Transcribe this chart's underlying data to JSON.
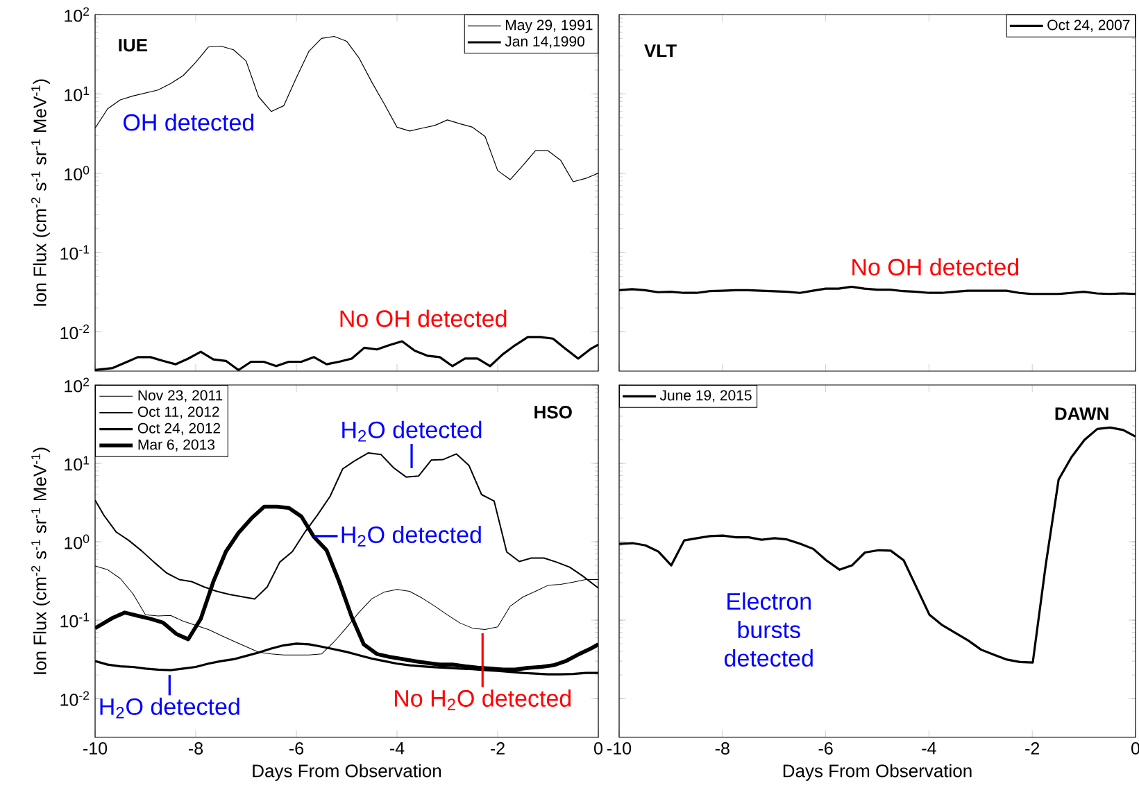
{
  "chart_data": [
    {
      "type": "line",
      "title": "IUE",
      "ylabel": "Ion Flux (cm$^{-2}$ s$^{-1}$ sr$^{-1}$ MeV$^{-1}$)",
      "log": true,
      "legend": "top right",
      "tick_labels": "y",
      "xlim": [
        -10,
        0
      ],
      "xticks": [
        -10,
        -8,
        -6,
        -4,
        -2,
        0
      ],
      "ylim": [
        0.0032,
        100
      ],
      "yticks": [
        {
          "value": 0.01,
          "label": "10$^{-2}$"
        },
        {
          "value": 0.1,
          "label": "10$^{-1}$"
        },
        {
          "value": 1,
          "label": "10$^{0}$"
        },
        {
          "value": 10,
          "label": "10$^{1}$"
        },
        {
          "value": 100,
          "label": "10$^{2}$"
        }
      ],
      "series": [
        {
          "name": "May 29, 1991",
          "color": "#000000",
          "x": [
            -10,
            -9.75,
            -9.5,
            -9.25,
            -8.75,
            -8.5,
            -8.25,
            -8,
            -7.75,
            -7.5,
            -7.25,
            -7,
            -6.75,
            -6.5,
            -6.25,
            -6,
            -5.75,
            -5.5,
            -5.25,
            -5,
            -4.75,
            -4.5,
            -4.25,
            -4,
            -3.75,
            -3.5,
            -3.25,
            -3,
            -2.75,
            -2.5,
            -2.25,
            -2,
            -1.75,
            -1.5,
            -1.25,
            -1,
            -0.75,
            -0.5,
            -0.25,
            0
          ],
          "values": [
            3.7,
            6.5,
            8.4,
            9.4,
            11.2,
            13.5,
            17,
            25,
            39,
            40,
            36,
            26,
            9.2,
            6.0,
            7.1,
            16,
            34.5,
            50,
            53,
            46,
            28,
            14,
            7.4,
            3.8,
            3.4,
            3.7,
            4.0,
            4.7,
            4.2,
            3.8,
            2.9,
            1.08,
            0.83,
            1.25,
            1.92,
            1.92,
            1.46,
            0.78,
            0.86,
            1.0
          ]
        },
        {
          "name": "Jan 14,1990",
          "color": "#000000",
          "x": [
            -10,
            -9.65,
            -9.4,
            -9.15,
            -8.9,
            -8.65,
            -8.4,
            -8.15,
            -7.9,
            -7.65,
            -7.4,
            -7.15,
            -6.9,
            -6.65,
            -6.4,
            -6.15,
            -5.9,
            -5.65,
            -5.4,
            -5.15,
            -4.9,
            -4.65,
            -4.4,
            -4.15,
            -3.9,
            -3.65,
            -3.4,
            -3.15,
            -2.9,
            -2.65,
            -2.4,
            -2.15,
            -1.9,
            -1.65,
            -1.4,
            -1.15,
            -0.9,
            -0.65,
            -0.4,
            -0.15,
            0
          ],
          "values": [
            0.0033,
            0.0035,
            0.0041,
            0.0048,
            0.0048,
            0.0043,
            0.0039,
            0.0046,
            0.0056,
            0.0045,
            0.0043,
            0.0033,
            0.0042,
            0.0042,
            0.0037,
            0.0042,
            0.0042,
            0.0048,
            0.0039,
            0.0042,
            0.0046,
            0.0063,
            0.006,
            0.0068,
            0.0076,
            0.0058,
            0.005,
            0.0048,
            0.0037,
            0.0046,
            0.0046,
            0.0037,
            0.0052,
            0.0068,
            0.0086,
            0.0086,
            0.0082,
            0.0061,
            0.0046,
            0.0061,
            0.0069
          ]
        }
      ],
      "annotations": [
        "OH detected",
        "No OH detected"
      ]
    },
    {
      "type": "line",
      "title": "VLT",
      "log": true,
      "legend": "top right",
      "tick_labels": false,
      "xlim": [
        -10,
        0
      ],
      "xticks": [
        -10,
        -8,
        -6,
        -4,
        -2,
        0
      ],
      "ylim": [
        0.0032,
        100
      ],
      "yticks": [
        {
          "value": 0.01,
          "label": null
        },
        {
          "value": 0.1,
          "label": null
        },
        {
          "value": 1,
          "label": null
        },
        {
          "value": 10,
          "label": null
        },
        {
          "value": 100,
          "label": null
        }
      ],
      "series": [
        {
          "name": "Oct 24, 2007",
          "color": "#000000",
          "x": [
            -10,
            -9.75,
            -9.5,
            -9.25,
            -9,
            -8.75,
            -8.5,
            -8.25,
            -8,
            -7.75,
            -7.5,
            -7.25,
            -7,
            -6.75,
            -6.5,
            -6.25,
            -6,
            -5.75,
            -5.5,
            -5.25,
            -5,
            -4.75,
            -4.5,
            -4.25,
            -4,
            -3.75,
            -3.5,
            -3.25,
            -3,
            -2.75,
            -2.5,
            -2.25,
            -2,
            -1.75,
            -1.5,
            -1.25,
            -1,
            -0.75,
            -0.5,
            -0.25,
            0
          ],
          "values": [
            0.0335,
            0.0345,
            0.0335,
            0.0316,
            0.032,
            0.031,
            0.031,
            0.0326,
            0.033,
            0.0335,
            0.0335,
            0.033,
            0.0325,
            0.032,
            0.031,
            0.033,
            0.035,
            0.035,
            0.037,
            0.035,
            0.034,
            0.034,
            0.0326,
            0.032,
            0.031,
            0.031,
            0.032,
            0.033,
            0.033,
            0.033,
            0.033,
            0.031,
            0.03,
            0.03,
            0.03,
            0.031,
            0.032,
            0.0305,
            0.03,
            0.0305,
            0.03
          ]
        }
      ],
      "annotations": [
        "No OH detected"
      ]
    },
    {
      "type": "line",
      "title": "HSO",
      "xlabel": "Days From Observation",
      "ylabel": "Ion Flux (cm$^{-2}$ s$^{-1}$ sr$^{-1}$ MeV$^{-1}$)",
      "log": true,
      "legend": "top left",
      "xlim": [
        -10,
        0
      ],
      "xticks": [
        -10,
        -8,
        -6,
        -4,
        -2,
        0
      ],
      "ylim": [
        0.0032,
        100
      ],
      "yticks": [
        {
          "value": 0.01,
          "label": "10$^{-2}$"
        },
        {
          "value": 0.1,
          "label": "10$^{-1}$"
        },
        {
          "value": 1,
          "label": "10$^{0}$"
        },
        {
          "value": 10,
          "label": "10$^{1}$"
        },
        {
          "value": 100,
          "label": "10$^{2}$"
        }
      ],
      "series": [
        {
          "name": "Nov 23, 2011",
          "color": "#000000",
          "x": [
            -10,
            -9.75,
            -9.5,
            -9.25,
            -9,
            -8.75,
            -8.5,
            -8.25,
            -8,
            -7.75,
            -7.5,
            -7.25,
            -7,
            -6.75,
            -6.5,
            -6.25,
            -6,
            -5.75,
            -5.5,
            -5.25,
            -5,
            -4.75,
            -4.5,
            -4.25,
            -4,
            -3.75,
            -3.5,
            -3.25,
            -3,
            -2.75,
            -2.5,
            -2.25,
            -2,
            -1.75,
            -1.5,
            -1.25,
            -1,
            -0.75,
            -0.5,
            -0.25,
            0
          ],
          "values": [
            0.49,
            0.44,
            0.34,
            0.218,
            0.117,
            0.113,
            0.115,
            0.097,
            0.086,
            0.076,
            0.064,
            0.054,
            0.046,
            0.039,
            0.037,
            0.036,
            0.036,
            0.036,
            0.037,
            0.053,
            0.081,
            0.127,
            0.188,
            0.229,
            0.247,
            0.233,
            0.191,
            0.151,
            0.117,
            0.092,
            0.079,
            0.076,
            0.082,
            0.151,
            0.197,
            0.233,
            0.278,
            0.286,
            0.306,
            0.33,
            0.33
          ]
        },
        {
          "name": "Oct 11, 2012",
          "color": "#000000",
          "x": [
            -10,
            -9.83,
            -9.58,
            -9.33,
            -9.08,
            -8.83,
            -8.58,
            -8.33,
            -8.08,
            -7.83,
            -7.58,
            -7.33,
            -7.08,
            -6.83,
            -6.58,
            -6.33,
            -6.08,
            -5.83,
            -5.58,
            -5.33,
            -5.08,
            -4.83,
            -4.57,
            -4.32,
            -4.07,
            -3.82,
            -3.57,
            -3.32,
            -3.08,
            -2.82,
            -2.57,
            -2.32,
            -2.07,
            -1.82,
            -1.57,
            -1.33,
            -1.08,
            -0.83,
            -0.57,
            -0.32,
            0
          ],
          "values": [
            3.4,
            2.2,
            1.33,
            1.04,
            0.77,
            0.55,
            0.4,
            0.33,
            0.31,
            0.265,
            0.233,
            0.213,
            0.199,
            0.186,
            0.265,
            0.55,
            0.75,
            1.33,
            2.2,
            3.8,
            8.5,
            10.9,
            13.6,
            13,
            8.8,
            6.7,
            6.9,
            11,
            11.2,
            13.2,
            9.4,
            4.0,
            3.3,
            0.74,
            0.56,
            0.62,
            0.62,
            0.55,
            0.475,
            0.37,
            0.257
          ]
        },
        {
          "name": "Oct 24, 2012",
          "color": "#000000",
          "x": [
            -10,
            -9.75,
            -9.5,
            -9.25,
            -9,
            -8.75,
            -8.5,
            -8.25,
            -8,
            -7.75,
            -7.5,
            -7.25,
            -7,
            -6.75,
            -6.5,
            -6.25,
            -6,
            -5.75,
            -5.5,
            -5.25,
            -5,
            -4.75,
            -4.5,
            -4.25,
            -4,
            -3.75,
            -3.5,
            -3.25,
            -3,
            -2.75,
            -2.5,
            -2.25,
            -2,
            -1.75,
            -1.5,
            -1.25,
            -1,
            -0.75,
            -0.5,
            -0.25,
            0
          ],
          "values": [
            0.03,
            0.0271,
            0.0258,
            0.0253,
            0.0241,
            0.0234,
            0.023,
            0.0241,
            0.0253,
            0.0279,
            0.03,
            0.0317,
            0.035,
            0.0386,
            0.0434,
            0.0478,
            0.0502,
            0.0492,
            0.0459,
            0.0425,
            0.0393,
            0.0356,
            0.0323,
            0.03,
            0.0279,
            0.0266,
            0.0258,
            0.0251,
            0.0246,
            0.0241,
            0.0237,
            0.023,
            0.0225,
            0.0219,
            0.0212,
            0.0208,
            0.0204,
            0.0204,
            0.0206,
            0.0212,
            0.0212
          ]
        },
        {
          "name": "Mar 6, 2013",
          "color": "#000000",
          "x": [
            -10,
            -9.65,
            -9.41,
            -9.14,
            -8.9,
            -8.65,
            -8.39,
            -8.15,
            -7.9,
            -7.65,
            -7.4,
            -7.15,
            -6.89,
            -6.64,
            -6.39,
            -6.15,
            -5.9,
            -5.65,
            -5.4,
            -5.15,
            -4.9,
            -4.66,
            -4.4,
            -4.15,
            -3.9,
            -3.64,
            -3.4,
            -3.15,
            -2.9,
            -2.65,
            -2.4,
            -2.15,
            -1.89,
            -1.65,
            -1.4,
            -1.14,
            -0.89,
            -0.65,
            -0.38,
            -0.15,
            0
          ],
          "values": [
            0.079,
            0.107,
            0.125,
            0.113,
            0.104,
            0.093,
            0.067,
            0.057,
            0.104,
            0.31,
            0.75,
            1.3,
            2.0,
            2.8,
            2.8,
            2.7,
            2.1,
            1.15,
            0.78,
            0.31,
            0.11,
            0.049,
            0.037,
            0.034,
            0.032,
            0.03,
            0.0284,
            0.0271,
            0.0271,
            0.0258,
            0.0248,
            0.0241,
            0.0234,
            0.0234,
            0.0246,
            0.0253,
            0.0266,
            0.03,
            0.037,
            0.0434,
            0.049
          ]
        }
      ],
      "annotations": [
        "H$_{2}$O detected",
        "H$_{2}$O detected",
        "H$_{2}$O detected",
        "No H$_{2}$O detected"
      ]
    },
    {
      "type": "line",
      "title": "DAWN",
      "xlabel": "Days From Observation",
      "log": true,
      "legend": "top left",
      "tick_labels": "x",
      "xlim": [
        -10,
        0
      ],
      "xticks": [
        -10,
        -8,
        -6,
        -4,
        -2,
        0
      ],
      "ylim": [
        0.0032,
        100
      ],
      "yticks": [
        {
          "value": 0.01,
          "label": null
        },
        {
          "value": 0.1,
          "label": null
        },
        {
          "value": 1,
          "label": null
        },
        {
          "value": 10,
          "label": null
        },
        {
          "value": 100,
          "label": null
        }
      ],
      "series": [
        {
          "name": "June 19, 2015",
          "color": "#000000",
          "x": [
            -10,
            -9.74,
            -9.49,
            -9.24,
            -8.99,
            -8.74,
            -8.49,
            -8.24,
            -7.99,
            -7.74,
            -7.49,
            -7.24,
            -6.99,
            -6.75,
            -6.49,
            -6.24,
            -5.99,
            -5.73,
            -5.49,
            -5.24,
            -4.98,
            -4.74,
            -4.49,
            -4.23,
            -3.99,
            -3.74,
            -3.49,
            -3.24,
            -2.99,
            -2.73,
            -2.49,
            -2.24,
            -1.99,
            -1.74,
            -1.49,
            -1.24,
            -0.99,
            -0.74,
            -0.49,
            -0.24,
            0
          ],
          "values": [
            0.94,
            0.96,
            0.9,
            0.75,
            0.5,
            1.04,
            1.11,
            1.18,
            1.2,
            1.14,
            1.14,
            1.06,
            1.11,
            1.07,
            0.94,
            0.81,
            0.58,
            0.44,
            0.5,
            0.73,
            0.78,
            0.77,
            0.58,
            0.252,
            0.117,
            0.086,
            0.069,
            0.055,
            0.042,
            0.036,
            0.0314,
            0.0293,
            0.0288,
            0.5,
            6.2,
            12,
            19.9,
            27.5,
            28.6,
            26.7,
            22
          ]
        }
      ],
      "annotations": [
        "Electron bursts detected"
      ]
    }
  ]
}
